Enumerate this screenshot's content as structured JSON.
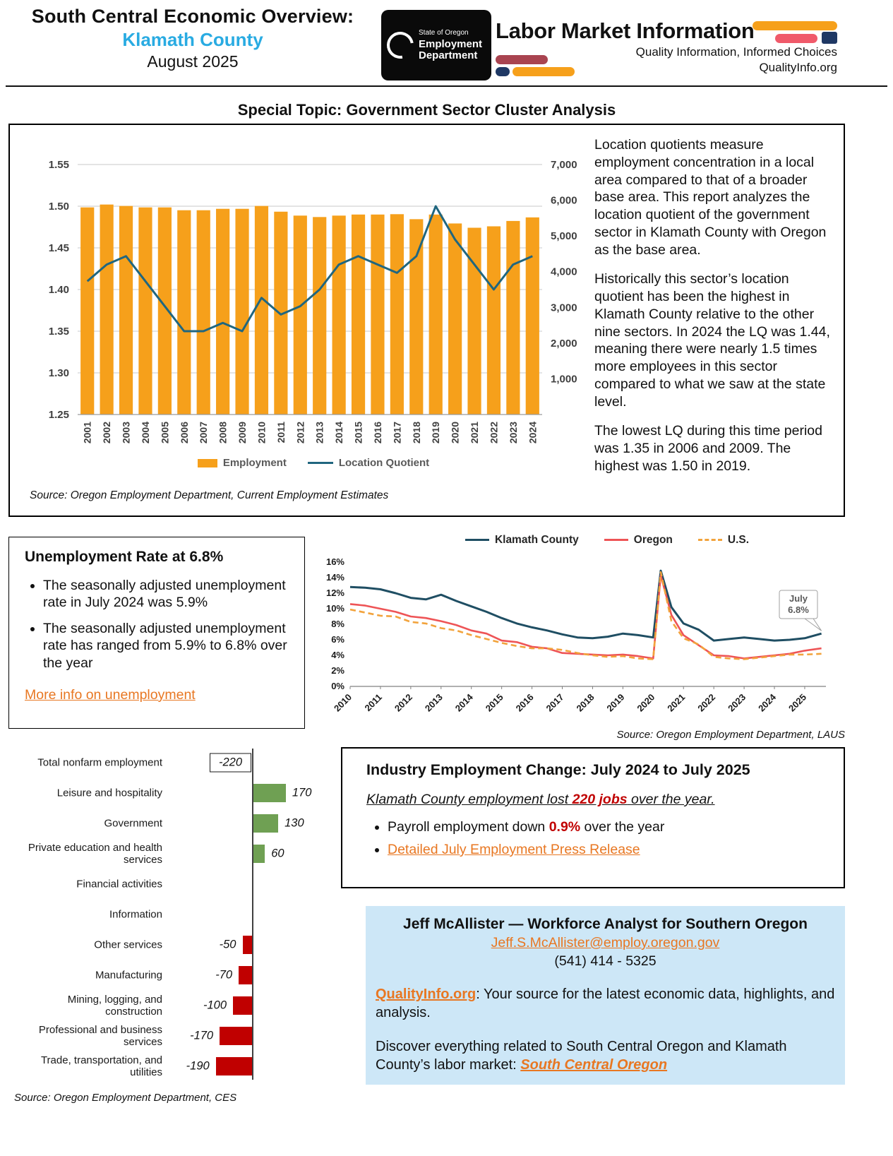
{
  "header": {
    "title": "South Central Economic Overview:",
    "county": "Klamath County",
    "date": "August 2025",
    "logo": {
      "state": "State of Oregon",
      "dept_line1": "Employment",
      "dept_line2": "Department",
      "lmi_title": "Labor Market Information",
      "tagline": "Quality Information, Informed Choices",
      "site": "QualityInfo.org"
    }
  },
  "special_topic": "Special Topic: Government Sector Cluster Analysis",
  "lq_section": {
    "source": "Source: Oregon Employment Department, Current Employment Estimates",
    "p1": "Location quotients measure employment concentration in a local area compared to that of a broader base area. This report analyzes the location quotient of the government sector in Klamath County with Oregon as the base area.",
    "p2": "Historically this sector’s location quotient has been the highest in Klamath County relative to the other nine sectors. In 2024 the LQ was 1.44, meaning there were nearly 1.5 times more employees in this sector compared to what we saw at the state level.",
    "p3": "The lowest LQ during this time period was 1.35 in 2006 and 2009. The highest was 1.50 in 2019."
  },
  "unemployment_box": {
    "title": "Unemployment Rate at 6.8%",
    "bullet1": "The seasonally adjusted unemployment rate in July 2024 was 5.9%",
    "bullet2": "The seasonally adjusted unemployment rate has ranged from 5.9% to 6.8% over the year",
    "link": "More info on unemployment"
  },
  "unemployment_chart": {
    "source": "Source: Oregon Employment Department, LAUS"
  },
  "industry_box": {
    "title": "Industry Employment Change: July 2024 to July 2025",
    "lead_pre": "Klamath County employment lost ",
    "lead_hl": "220 jobs",
    "lead_post": " over the year.",
    "bullet1_pre": "Payroll employment down ",
    "bullet1_hl": "0.9%",
    "bullet1_post": " over the year",
    "bullet2_link": "Detailed July Employment Press Release"
  },
  "bar_chart_source": "Source: Oregon Employment Department, CES",
  "contact_box": {
    "name_line": "Jeff McAllister — Workforce Analyst for Southern Oregon",
    "email": "Jeff.S.McAllister@employ.oregon.gov",
    "phone": "(541) 414 - 5325",
    "q_link": "QualityInfo.org",
    "q_rest": ": Your source for the latest economic data, highlights, and analysis.",
    "discover_pre": "Discover everything related to South Central Oregon and Klamath County’s labor market: ",
    "discover_link": "South Central Oregon"
  },
  "chart_data": [
    {
      "id": "lq_combo",
      "type": "bar+line",
      "title": "Government Sector: Employment and Location Quotient, Klamath County",
      "categories": [
        "2001",
        "2002",
        "2003",
        "2004",
        "2005",
        "2006",
        "2007",
        "2008",
        "2009",
        "2010",
        "2011",
        "2012",
        "2013",
        "2014",
        "2015",
        "2016",
        "2017",
        "2018",
        "2019",
        "2020",
        "2021",
        "2022",
        "2023",
        "2024"
      ],
      "series": [
        {
          "name": "Employment",
          "type": "bar",
          "axis": "right",
          "color": "#F6A01B",
          "values": [
            5800,
            5880,
            5840,
            5800,
            5800,
            5720,
            5720,
            5760,
            5760,
            5840,
            5680,
            5570,
            5530,
            5570,
            5600,
            5600,
            5610,
            5470,
            5600,
            5350,
            5230,
            5270,
            5420,
            5520
          ]
        },
        {
          "name": "Location Quotient",
          "type": "line",
          "axis": "left",
          "color": "#20667F",
          "values": [
            1.41,
            1.43,
            1.44,
            1.41,
            1.38,
            1.35,
            1.35,
            1.36,
            1.35,
            1.39,
            1.37,
            1.38,
            1.4,
            1.43,
            1.44,
            1.43,
            1.42,
            1.44,
            1.5,
            1.46,
            1.43,
            1.4,
            1.43,
            1.44
          ]
        }
      ],
      "left_axis": {
        "min": 1.25,
        "max": 1.55,
        "step": 0.05
      },
      "right_axis": {
        "min": 0,
        "max": 7000,
        "labels": [
          1000,
          2000,
          3000,
          4000,
          5000,
          6000,
          7000
        ]
      }
    },
    {
      "id": "unemployment",
      "type": "line",
      "title": "Seasonally Adjusted Unemployment Rate",
      "ylim": [
        0,
        16
      ],
      "ytick_step": 2,
      "xlim": [
        2010,
        2025.7
      ],
      "xticks": [
        2010,
        2011,
        2012,
        2013,
        2014,
        2015,
        2016,
        2017,
        2018,
        2019,
        2020,
        2021,
        2022,
        2023,
        2024,
        2025
      ],
      "series": [
        {
          "name": "Klamath County",
          "color": "#1F4E63",
          "dash": false,
          "width": 3,
          "points": [
            [
              2010,
              12.8
            ],
            [
              2010.5,
              12.7
            ],
            [
              2011,
              12.5
            ],
            [
              2011.5,
              12.0
            ],
            [
              2012,
              11.4
            ],
            [
              2012.5,
              11.2
            ],
            [
              2013,
              11.8
            ],
            [
              2013.5,
              11.0
            ],
            [
              2014,
              10.3
            ],
            [
              2014.5,
              9.6
            ],
            [
              2015,
              8.8
            ],
            [
              2015.5,
              8.1
            ],
            [
              2016,
              7.6
            ],
            [
              2016.5,
              7.2
            ],
            [
              2017,
              6.7
            ],
            [
              2017.5,
              6.3
            ],
            [
              2018,
              6.2
            ],
            [
              2018.5,
              6.4
            ],
            [
              2019,
              6.8
            ],
            [
              2019.5,
              6.6
            ],
            [
              2020,
              6.3
            ],
            [
              2020.25,
              14.9
            ],
            [
              2020.6,
              10.2
            ],
            [
              2021,
              8.1
            ],
            [
              2021.5,
              7.3
            ],
            [
              2022,
              5.9
            ],
            [
              2022.5,
              6.1
            ],
            [
              2023,
              6.3
            ],
            [
              2023.5,
              6.1
            ],
            [
              2024,
              5.9
            ],
            [
              2024.5,
              6.0
            ],
            [
              2025,
              6.2
            ],
            [
              2025.55,
              6.8
            ]
          ]
        },
        {
          "name": "Oregon",
          "color": "#EE5456",
          "dash": false,
          "width": 2.6,
          "points": [
            [
              2010,
              10.6
            ],
            [
              2010.5,
              10.4
            ],
            [
              2011,
              10.0
            ],
            [
              2011.5,
              9.6
            ],
            [
              2012,
              9.0
            ],
            [
              2012.5,
              8.8
            ],
            [
              2013,
              8.4
            ],
            [
              2013.5,
              7.9
            ],
            [
              2014,
              7.2
            ],
            [
              2014.5,
              6.8
            ],
            [
              2015,
              5.9
            ],
            [
              2015.5,
              5.7
            ],
            [
              2016,
              5.1
            ],
            [
              2016.5,
              4.9
            ],
            [
              2017,
              4.3
            ],
            [
              2017.5,
              4.2
            ],
            [
              2018,
              4.1
            ],
            [
              2018.5,
              4.0
            ],
            [
              2019,
              4.1
            ],
            [
              2019.5,
              3.9
            ],
            [
              2020,
              3.6
            ],
            [
              2020.25,
              14.3
            ],
            [
              2020.6,
              9.2
            ],
            [
              2021,
              6.6
            ],
            [
              2021.5,
              5.3
            ],
            [
              2022,
              4.0
            ],
            [
              2022.5,
              3.9
            ],
            [
              2023,
              3.6
            ],
            [
              2023.5,
              3.8
            ],
            [
              2024,
              4.0
            ],
            [
              2024.5,
              4.2
            ],
            [
              2025,
              4.6
            ],
            [
              2025.55,
              4.9
            ]
          ]
        },
        {
          "name": "U.S.",
          "color": "#F2A33C",
          "dash": true,
          "width": 2.6,
          "points": [
            [
              2010,
              9.9
            ],
            [
              2010.5,
              9.5
            ],
            [
              2011,
              9.1
            ],
            [
              2011.5,
              9.0
            ],
            [
              2012,
              8.3
            ],
            [
              2012.5,
              8.1
            ],
            [
              2013,
              7.5
            ],
            [
              2013.5,
              7.2
            ],
            [
              2014,
              6.6
            ],
            [
              2014.5,
              6.1
            ],
            [
              2015,
              5.6
            ],
            [
              2015.5,
              5.2
            ],
            [
              2016,
              4.9
            ],
            [
              2016.5,
              4.9
            ],
            [
              2017,
              4.7
            ],
            [
              2017.5,
              4.3
            ],
            [
              2018,
              4.0
            ],
            [
              2018.5,
              3.8
            ],
            [
              2019,
              3.9
            ],
            [
              2019.5,
              3.6
            ],
            [
              2020,
              3.5
            ],
            [
              2020.25,
              14.7
            ],
            [
              2020.6,
              8.4
            ],
            [
              2021,
              6.2
            ],
            [
              2021.5,
              5.4
            ],
            [
              2022,
              3.8
            ],
            [
              2022.5,
              3.6
            ],
            [
              2023,
              3.5
            ],
            [
              2023.5,
              3.7
            ],
            [
              2024,
              3.9
            ],
            [
              2024.5,
              4.1
            ],
            [
              2025,
              4.1
            ],
            [
              2025.55,
              4.2
            ]
          ]
        }
      ],
      "annotation": {
        "x": 2025.55,
        "y": 6.8,
        "line1": "July",
        "line2": "6.8%"
      }
    },
    {
      "id": "industry_change",
      "type": "bar",
      "orientation": "horizontal",
      "title": "Industry Employment Change, July 2024 to July 2025",
      "categories": [
        "Total nonfarm employment",
        "Leisure and hospitality",
        "Government",
        "Private education and health services",
        "Financial activities",
        "Information",
        "Other services",
        "Manufacturing",
        "Mining, logging, and construction",
        "Professional and business services",
        "Trade, transportation, and utilities"
      ],
      "values": [
        -220,
        170,
        130,
        60,
        0,
        0,
        -50,
        -70,
        -100,
        -170,
        -190
      ],
      "positive_color": "#6FA053",
      "negative_color": "#C00000",
      "boxed_first": true
    }
  ]
}
